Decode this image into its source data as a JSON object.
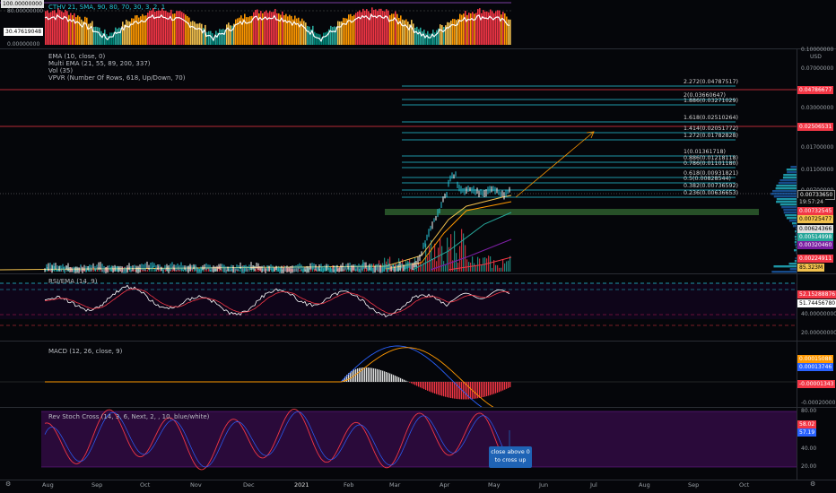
{
  "top_indicator": {
    "title": "CTHV",
    "params": "21, SMA, 90, 80, 70, 30, 3, 2, 1",
    "ticks": [
      "100.00000000",
      "80.00000000",
      "30.47619048",
      "0.00000000"
    ]
  },
  "main": {
    "legend": [
      "EMA (10, close, 0)",
      "Multi EMA (21, 55, 89, 200, 337)",
      "Vol (35)",
      "VPVR (Number Of Rows, 618, Up/Down, 70)"
    ],
    "fib_levels": [
      "2.272(0.04787517)",
      "2(0.03660647)",
      "1.886(0.03271029)",
      "1.618(0.02510264)",
      "1.414(0.02051772)",
      "1.272(0.01782828)",
      "1(0.01361718)",
      "0.886(0.01218118)",
      "0.786(0.01101180)",
      "0.618(0.00931821)",
      "0.5(0.00828544)",
      "0.382(0.00736592)",
      "0.236(0.00636653)"
    ],
    "price_ticks": [
      "0.10000000",
      "USD",
      "0.07000000",
      "0.03000000",
      "0.01700000",
      "0.01100000",
      "0.00700000"
    ],
    "badges": {
      "red_top": "0.04786677",
      "red_mid": "0.02506531",
      "last_price": "0.00733650",
      "countdown": "19:57:24",
      "b1": "0.00732545",
      "b2": "0.00725477",
      "b3": "0.00624366",
      "b4": "0.00514998",
      "b5": "0.00320460",
      "b6": "0.00224911",
      "vol": "85.323M"
    }
  },
  "rsi": {
    "title": "RSI/EMA (14, 9)",
    "ticks": [
      "52.15288876",
      "51.74456780",
      "40.00000000",
      "20.00000000"
    ]
  },
  "macd": {
    "title": "MACD (12, 26, close, 9)",
    "ticks": [
      "0.00015088",
      "0.00013746",
      "-0.00001343",
      "-0.00020000"
    ]
  },
  "stoch": {
    "title": "Rev Stoch Cross (14, 3, 6, Next, 2, , 10, blue/white)",
    "ticks": [
      "80.00",
      "58.02",
      "57.19",
      "40.00",
      "20.00"
    ],
    "bubble_line1": "close above 0",
    "bubble_line2": "to cross up"
  },
  "time_axis": [
    "Aug",
    "Sep",
    "Oct",
    "Nov",
    "Dec",
    "2021",
    "Feb",
    "Mar",
    "Apr",
    "May",
    "Jun",
    "Jul",
    "Aug",
    "Sep",
    "Oct"
  ],
  "colors": {
    "red": "#f23645",
    "teal": "#26c6da",
    "green": "#26a69a",
    "orange": "#ff9800",
    "purple": "#7b1fa2",
    "blue": "#2962ff"
  }
}
